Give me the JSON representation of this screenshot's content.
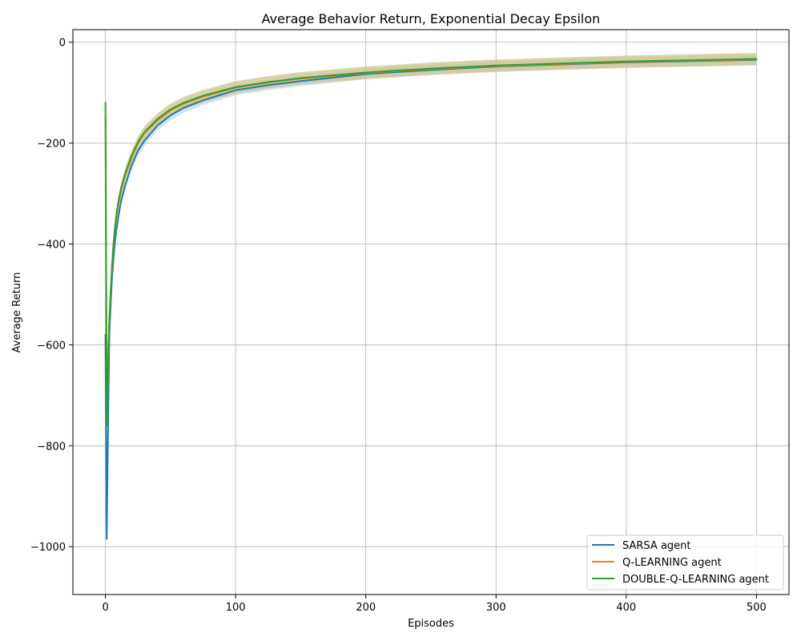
{
  "chart_data": {
    "type": "line",
    "title": "Average Behavior Return, Exponential Decay Epsilon",
    "xlabel": "Episodes",
    "ylabel": "Average Return",
    "xlim": [
      -25,
      525
    ],
    "ylim": [
      -1095,
      25
    ],
    "xticks": [
      0,
      100,
      200,
      300,
      400,
      500
    ],
    "yticks": [
      0,
      -200,
      -400,
      -600,
      -800,
      -1000
    ],
    "grid": true,
    "legend_position": "lower-right",
    "series": [
      {
        "name": "SARSA agent",
        "color": "#1f77b4",
        "band_color": "#a8d4ec",
        "band_width": 10,
        "x": [
          0,
          1,
          2,
          3,
          4,
          5,
          6,
          7,
          8,
          10,
          12,
          15,
          20,
          25,
          30,
          40,
          50,
          60,
          75,
          100,
          125,
          150,
          200,
          250,
          300,
          400,
          500
        ],
        "y": [
          -580,
          -985,
          -760,
          -580,
          -520,
          -470,
          -435,
          -405,
          -380,
          -345,
          -315,
          -285,
          -245,
          -215,
          -195,
          -165,
          -145,
          -130,
          -115,
          -95,
          -85,
          -77,
          -63,
          -55,
          -48,
          -40,
          -35
        ]
      },
      {
        "name": "Q-LEARNING agent",
        "color": "#ff7f0e",
        "band_color": "#e0c090",
        "band_width": 12,
        "x": [
          0,
          1,
          2,
          3,
          4,
          5,
          6,
          7,
          8,
          10,
          12,
          15,
          20,
          25,
          30,
          40,
          50,
          60,
          75,
          100,
          125,
          150,
          200,
          250,
          300,
          400,
          500
        ],
        "y": [
          -150,
          -700,
          -620,
          -550,
          -495,
          -450,
          -410,
          -380,
          -355,
          -320,
          -295,
          -265,
          -230,
          -200,
          -180,
          -155,
          -135,
          -122,
          -108,
          -90,
          -80,
          -72,
          -61,
          -53,
          -47,
          -39,
          -34
        ]
      },
      {
        "name": "DOUBLE-Q-LEARNING agent",
        "color": "#2ca02c",
        "band_color": "#c8c890",
        "band_width": 12,
        "x": [
          0,
          1,
          2,
          3,
          4,
          5,
          6,
          7,
          8,
          10,
          12,
          15,
          20,
          25,
          30,
          40,
          50,
          60,
          75,
          100,
          125,
          150,
          200,
          250,
          300,
          400,
          500
        ],
        "y": [
          -120,
          -760,
          -650,
          -555,
          -495,
          -445,
          -405,
          -375,
          -350,
          -315,
          -290,
          -262,
          -225,
          -198,
          -178,
          -152,
          -133,
          -120,
          -106,
          -89,
          -79,
          -71,
          -60,
          -52,
          -46,
          -38,
          -33
        ]
      }
    ]
  }
}
